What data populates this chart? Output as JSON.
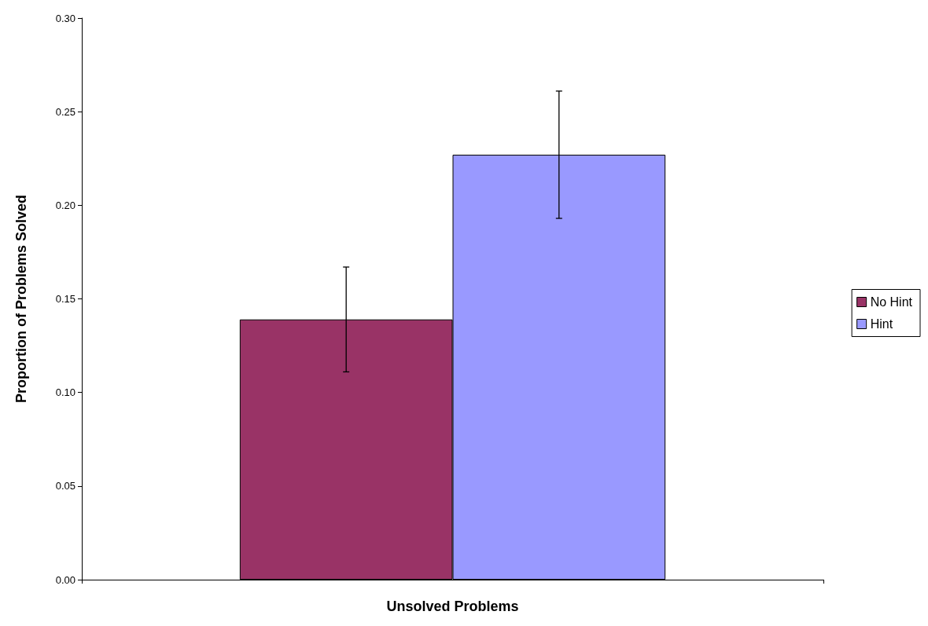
{
  "chart_data": {
    "type": "bar",
    "xlabel": "Unsolved Problems",
    "ylabel": "Proportion of Problems Solved",
    "categories": [
      null
    ],
    "series": [
      {
        "name": "No Hint",
        "color": "#993366",
        "values": [
          0.139
        ],
        "errors": [
          0.028
        ]
      },
      {
        "name": "Hint",
        "color": "#9999ff",
        "values": [
          0.227
        ],
        "errors": [
          0.034
        ]
      }
    ],
    "ylim": [
      0,
      0.3
    ],
    "yticks": [
      {
        "value": 0,
        "label": "0.00"
      },
      {
        "value": 0.05,
        "label": "0.05"
      },
      {
        "value": 0.1,
        "label": "0.10"
      },
      {
        "value": 0.15,
        "label": "0.15"
      },
      {
        "value": 0.2,
        "label": "0.20"
      },
      {
        "value": 0.25,
        "label": "0.25"
      },
      {
        "value": 0.3,
        "label": "0.30"
      }
    ],
    "grid": false,
    "legend": "right"
  }
}
